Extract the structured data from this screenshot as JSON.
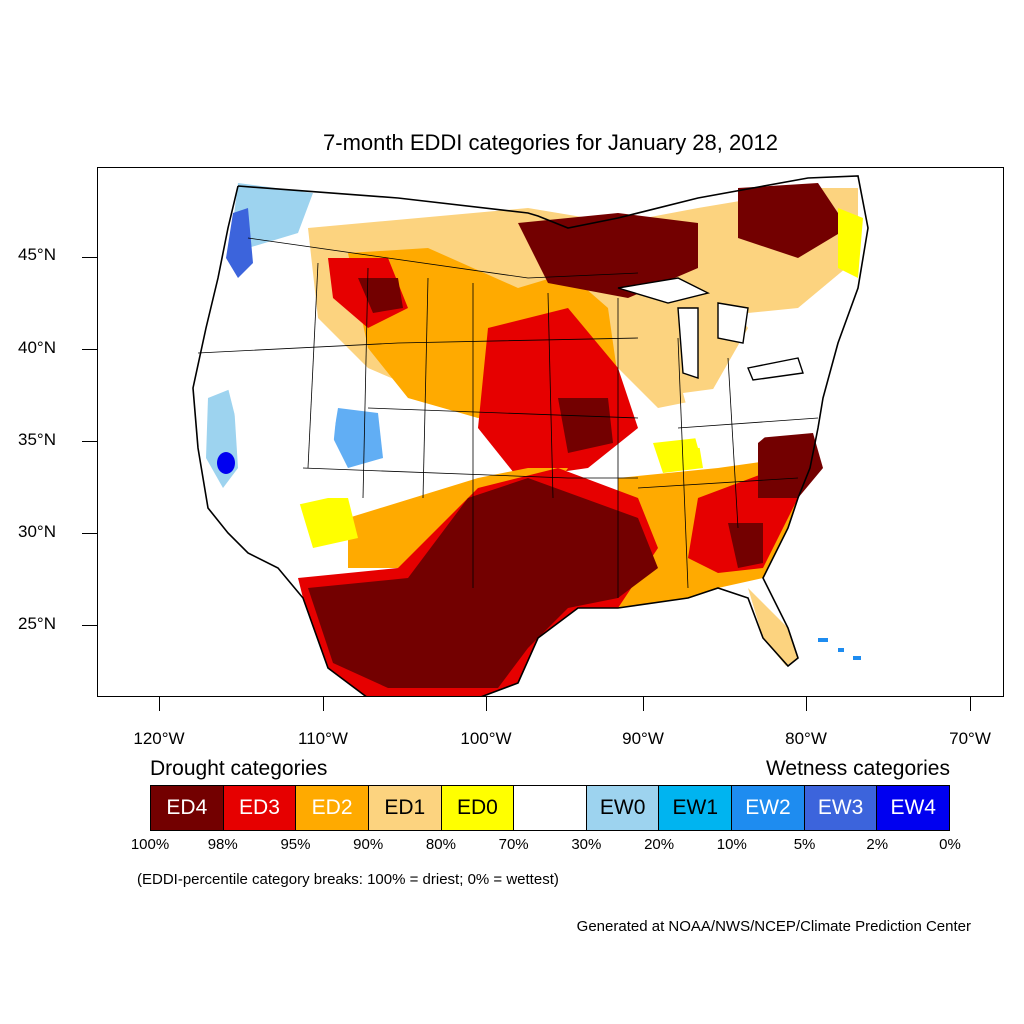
{
  "title": "7-month EDDI categories for January 28, 2012",
  "lat_labels": [
    "45°N",
    "40°N",
    "35°N",
    "30°N",
    "25°N"
  ],
  "lon_labels": [
    "120°W",
    "110°W",
    "100°W",
    "90°W",
    "80°W",
    "70°W"
  ],
  "legend": {
    "drought_heading": "Drought categories",
    "wetness_heading": "Wetness categories",
    "categories": [
      {
        "label": "ED4",
        "color": "#730000",
        "text_color": "#ffffff"
      },
      {
        "label": "ED3",
        "color": "#e60000",
        "text_color": "#ffffff"
      },
      {
        "label": "ED2",
        "color": "#ffaa00",
        "text_color": "#ffffff"
      },
      {
        "label": "ED1",
        "color": "#fcd37f",
        "text_color": "#000000"
      },
      {
        "label": "ED0",
        "color": "#ffff00",
        "text_color": "#000000"
      },
      {
        "label": "",
        "color": "#ffffff",
        "text_color": "#000000"
      },
      {
        "label": "EW0",
        "color": "#9dd3ef",
        "text_color": "#000000"
      },
      {
        "label": "EW1",
        "color": "#00b4f0",
        "text_color": "#000000"
      },
      {
        "label": "EW2",
        "color": "#1e8cf0",
        "text_color": "#ffffff"
      },
      {
        "label": "EW3",
        "color": "#3c64dc",
        "text_color": "#ffffff"
      },
      {
        "label": "EW4",
        "color": "#0000f0",
        "text_color": "#ffffff"
      }
    ],
    "breaks": [
      "100%",
      "98%",
      "95%",
      "90%",
      "80%",
      "70%",
      "30%",
      "20%",
      "10%",
      "5%",
      "2%",
      "0%"
    ]
  },
  "note": "(EDDI-percentile category breaks: 100% = driest; 0% = wettest)",
  "credit": "Generated at NOAA/NWS/NCEP/Climate Prediction Center"
}
